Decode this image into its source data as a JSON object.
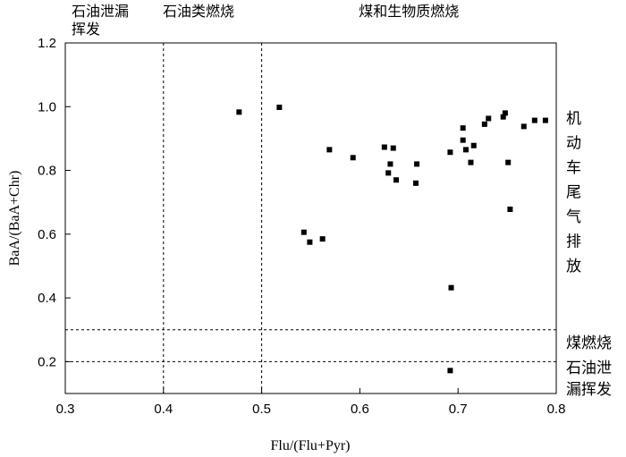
{
  "chart_data": {
    "type": "scatter",
    "xlabel": "Flu/(Flu+Pyr)",
    "ylabel": "BaA/(BaA+Chr)",
    "xlim": [
      0.3,
      0.8
    ],
    "ylim": [
      0.1,
      1.2
    ],
    "xticks": [
      "0.3",
      "0.4",
      "0.5",
      "0.6",
      "0.7",
      "0.8"
    ],
    "yticks": [
      "0.2",
      "0.4",
      "0.6",
      "0.8",
      "1.0",
      "1.2"
    ],
    "grid": false,
    "vertical_lines": [
      0.4,
      0.5
    ],
    "horizontal_lines": [
      0.2,
      0.3
    ],
    "region_labels_top": [
      {
        "lines": [
          "石油泄漏",
          "挥发"
        ],
        "x_range": [
          0.3,
          0.4
        ]
      },
      {
        "lines": [
          "石油类燃烧"
        ],
        "x_range": [
          0.4,
          0.5
        ]
      },
      {
        "lines": [
          "煤和生物质燃烧"
        ],
        "x_range": [
          0.5,
          0.8
        ]
      }
    ],
    "region_labels_right": [
      {
        "lines": [
          "机",
          "动",
          "车",
          "尾",
          "气",
          "排",
          "放"
        ],
        "y_range": [
          0.3,
          1.2
        ]
      },
      {
        "lines": [
          "煤燃烧"
        ],
        "y_range": [
          0.2,
          0.3
        ]
      },
      {
        "lines": [
          "石油泄",
          "漏挥发"
        ],
        "y_range": [
          0.1,
          0.2
        ]
      }
    ],
    "points": [
      {
        "x": 0.477,
        "y": 0.983
      },
      {
        "x": 0.518,
        "y": 0.998
      },
      {
        "x": 0.569,
        "y": 0.865
      },
      {
        "x": 0.593,
        "y": 0.84
      },
      {
        "x": 0.625,
        "y": 0.873
      },
      {
        "x": 0.634,
        "y": 0.87
      },
      {
        "x": 0.631,
        "y": 0.82
      },
      {
        "x": 0.629,
        "y": 0.792
      },
      {
        "x": 0.637,
        "y": 0.77
      },
      {
        "x": 0.658,
        "y": 0.82
      },
      {
        "x": 0.657,
        "y": 0.76
      },
      {
        "x": 0.543,
        "y": 0.606
      },
      {
        "x": 0.549,
        "y": 0.575
      },
      {
        "x": 0.562,
        "y": 0.585
      },
      {
        "x": 0.692,
        "y": 0.857
      },
      {
        "x": 0.705,
        "y": 0.933
      },
      {
        "x": 0.705,
        "y": 0.895
      },
      {
        "x": 0.708,
        "y": 0.865
      },
      {
        "x": 0.716,
        "y": 0.878
      },
      {
        "x": 0.713,
        "y": 0.825
      },
      {
        "x": 0.727,
        "y": 0.945
      },
      {
        "x": 0.731,
        "y": 0.963
      },
      {
        "x": 0.746,
        "y": 0.968
      },
      {
        "x": 0.748,
        "y": 0.98
      },
      {
        "x": 0.767,
        "y": 0.938
      },
      {
        "x": 0.778,
        "y": 0.957
      },
      {
        "x": 0.789,
        "y": 0.957
      },
      {
        "x": 0.751,
        "y": 0.825
      },
      {
        "x": 0.753,
        "y": 0.678
      },
      {
        "x": 0.693,
        "y": 0.432
      },
      {
        "x": 0.692,
        "y": 0.172
      }
    ]
  }
}
